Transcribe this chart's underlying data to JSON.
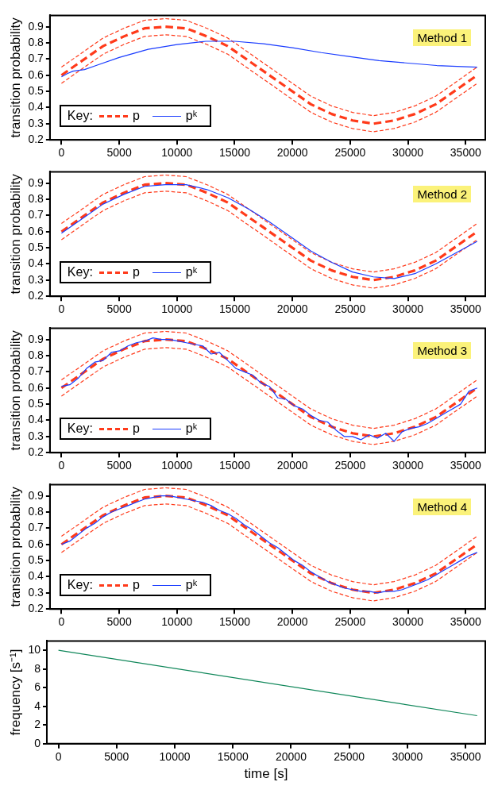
{
  "chart_data": [
    {
      "type": "line",
      "ylabel": "transition probability",
      "annotations": [
        "Method 1"
      ],
      "legend": "bottom left",
      "legend_title": "Key:",
      "grid": false,
      "xlim": [
        -1000,
        36700
      ],
      "xticks": [
        0,
        5000,
        10000,
        15000,
        20000,
        25000,
        30000,
        35000
      ],
      "ylim": [
        0.2,
        0.97
      ],
      "yticks": [
        0.2,
        0.3,
        0.4,
        0.5,
        0.6,
        0.7,
        0.8,
        0.9
      ],
      "x": [
        0,
        1800,
        3600,
        5400,
        7200,
        9000,
        10800,
        12600,
        14400,
        16200,
        18000,
        19800,
        21600,
        23400,
        25200,
        27000,
        28800,
        30600,
        32400,
        34200,
        36000
      ],
      "series": [
        {
          "name": "p",
          "color": "#ff3a1a",
          "line_style": "dashed",
          "values": [
            0.6,
            0.69,
            0.78,
            0.84,
            0.89,
            0.9,
            0.89,
            0.84,
            0.78,
            0.69,
            0.6,
            0.51,
            0.42,
            0.36,
            0.32,
            0.3,
            0.32,
            0.36,
            0.42,
            0.51,
            0.6
          ]
        },
        {
          "color": "#ff3a1a",
          "line_style": "dashed",
          "values": [
            0.65,
            0.74,
            0.83,
            0.89,
            0.94,
            0.95,
            0.94,
            0.89,
            0.83,
            0.74,
            0.65,
            0.56,
            0.47,
            0.41,
            0.37,
            0.35,
            0.37,
            0.41,
            0.47,
            0.56,
            0.65
          ]
        },
        {
          "color": "#ff3a1a",
          "line_style": "dashed",
          "values": [
            0.55,
            0.64,
            0.73,
            0.79,
            0.84,
            0.85,
            0.84,
            0.79,
            0.73,
            0.64,
            0.55,
            0.46,
            0.37,
            0.31,
            0.27,
            0.25,
            0.27,
            0.31,
            0.37,
            0.46,
            0.55
          ]
        },
        {
          "name": "pᵏ",
          "color": "#1a3cff",
          "line_style": "solid",
          "x": [
            0,
            500,
            1000,
            1500,
            2000,
            3000,
            5000,
            7500,
            10000,
            12500,
            15000,
            17500,
            20000,
            22500,
            25000,
            27500,
            30000,
            32500,
            36000
          ],
          "values": [
            0.59,
            0.61,
            0.625,
            0.63,
            0.635,
            0.66,
            0.71,
            0.76,
            0.79,
            0.81,
            0.81,
            0.795,
            0.77,
            0.74,
            0.715,
            0.69,
            0.675,
            0.66,
            0.65
          ]
        }
      ]
    },
    {
      "type": "line",
      "ylabel": "transition probability",
      "annotations": [
        "Method 2"
      ],
      "legend": "bottom left",
      "legend_title": "Key:",
      "grid": false,
      "xlim": [
        -1000,
        36700
      ],
      "xticks": [
        0,
        5000,
        10000,
        15000,
        20000,
        25000,
        30000,
        35000
      ],
      "ylim": [
        0.2,
        0.97
      ],
      "yticks": [
        0.2,
        0.3,
        0.4,
        0.5,
        0.6,
        0.7,
        0.8,
        0.9
      ],
      "x": [
        0,
        1800,
        3600,
        5400,
        7200,
        9000,
        10800,
        12600,
        14400,
        16200,
        18000,
        19800,
        21600,
        23400,
        25200,
        27000,
        28800,
        30600,
        32400,
        34200,
        36000
      ],
      "series": [
        {
          "name": "p",
          "color": "#ff3a1a",
          "line_style": "dashed",
          "values": [
            0.6,
            0.69,
            0.78,
            0.84,
            0.89,
            0.9,
            0.89,
            0.84,
            0.78,
            0.69,
            0.6,
            0.51,
            0.42,
            0.36,
            0.32,
            0.3,
            0.32,
            0.36,
            0.42,
            0.51,
            0.6
          ]
        },
        {
          "color": "#ff3a1a",
          "line_style": "dashed",
          "values": [
            0.65,
            0.74,
            0.83,
            0.89,
            0.94,
            0.95,
            0.94,
            0.89,
            0.83,
            0.74,
            0.65,
            0.56,
            0.47,
            0.41,
            0.37,
            0.35,
            0.37,
            0.41,
            0.47,
            0.56,
            0.65
          ]
        },
        {
          "color": "#ff3a1a",
          "line_style": "dashed",
          "values": [
            0.55,
            0.64,
            0.73,
            0.79,
            0.84,
            0.85,
            0.84,
            0.79,
            0.73,
            0.64,
            0.55,
            0.46,
            0.37,
            0.31,
            0.27,
            0.25,
            0.27,
            0.31,
            0.37,
            0.46,
            0.55
          ]
        },
        {
          "name": "pᵏ",
          "color": "#1a3cff",
          "line_style": "solid",
          "x": [
            0,
            1800,
            3600,
            5400,
            7200,
            9000,
            10800,
            12600,
            14400,
            16200,
            18000,
            19800,
            21600,
            23400,
            25200,
            27000,
            28800,
            30600,
            32400,
            34200,
            36000
          ],
          "values": [
            0.59,
            0.68,
            0.77,
            0.83,
            0.88,
            0.89,
            0.89,
            0.86,
            0.81,
            0.74,
            0.66,
            0.57,
            0.48,
            0.41,
            0.35,
            0.32,
            0.31,
            0.34,
            0.4,
            0.47,
            0.54
          ]
        }
      ]
    },
    {
      "type": "line",
      "ylabel": "transition probability",
      "annotations": [
        "Method 3"
      ],
      "legend": "bottom left",
      "legend_title": "Key:",
      "grid": false,
      "xlim": [
        -1000,
        36700
      ],
      "xticks": [
        0,
        5000,
        10000,
        15000,
        20000,
        25000,
        30000,
        35000
      ],
      "ylim": [
        0.2,
        0.97
      ],
      "yticks": [
        0.2,
        0.3,
        0.4,
        0.5,
        0.6,
        0.7,
        0.8,
        0.9
      ],
      "x": [
        0,
        1800,
        3600,
        5400,
        7200,
        9000,
        10800,
        12600,
        14400,
        16200,
        18000,
        19800,
        21600,
        23400,
        25200,
        27000,
        28800,
        30600,
        32400,
        34200,
        36000
      ],
      "series": [
        {
          "name": "p",
          "color": "#ff3a1a",
          "line_style": "dashed",
          "values": [
            0.6,
            0.69,
            0.78,
            0.84,
            0.89,
            0.9,
            0.89,
            0.84,
            0.78,
            0.69,
            0.6,
            0.51,
            0.42,
            0.36,
            0.32,
            0.3,
            0.32,
            0.36,
            0.42,
            0.51,
            0.6
          ]
        },
        {
          "color": "#ff3a1a",
          "line_style": "dashed",
          "values": [
            0.65,
            0.74,
            0.83,
            0.89,
            0.94,
            0.95,
            0.94,
            0.89,
            0.83,
            0.74,
            0.65,
            0.56,
            0.47,
            0.41,
            0.37,
            0.35,
            0.37,
            0.41,
            0.47,
            0.56,
            0.65
          ]
        },
        {
          "color": "#ff3a1a",
          "line_style": "dashed",
          "values": [
            0.55,
            0.64,
            0.73,
            0.79,
            0.84,
            0.85,
            0.84,
            0.79,
            0.73,
            0.64,
            0.55,
            0.46,
            0.37,
            0.31,
            0.27,
            0.25,
            0.27,
            0.31,
            0.37,
            0.46,
            0.55
          ]
        },
        {
          "name": "pᵏ",
          "color": "#1a3cff",
          "line_style": "solid",
          "x": [
            0,
            720,
            1440,
            2160,
            2880,
            3600,
            4320,
            5040,
            5760,
            6480,
            7200,
            7920,
            8640,
            9360,
            10080,
            10800,
            11520,
            12240,
            12960,
            13680,
            14400,
            15120,
            15840,
            16560,
            17280,
            18000,
            18720,
            19440,
            20160,
            20880,
            21600,
            22320,
            23040,
            23760,
            24480,
            25200,
            25920,
            26640,
            27360,
            28080,
            28800,
            29520,
            30240,
            30960,
            31680,
            32400,
            33120,
            33840,
            34560,
            35280,
            36000
          ],
          "values": [
            0.61,
            0.62,
            0.66,
            0.72,
            0.76,
            0.77,
            0.82,
            0.83,
            0.86,
            0.88,
            0.89,
            0.91,
            0.9,
            0.9,
            0.89,
            0.88,
            0.87,
            0.86,
            0.81,
            0.82,
            0.77,
            0.72,
            0.7,
            0.68,
            0.63,
            0.61,
            0.54,
            0.53,
            0.49,
            0.47,
            0.43,
            0.4,
            0.39,
            0.34,
            0.3,
            0.3,
            0.28,
            0.31,
            0.29,
            0.32,
            0.27,
            0.33,
            0.35,
            0.36,
            0.38,
            0.41,
            0.44,
            0.47,
            0.5,
            0.58,
            0.6
          ]
        }
      ]
    },
    {
      "type": "line",
      "ylabel": "transition probability",
      "annotations": [
        "Method 4"
      ],
      "legend": "bottom left",
      "legend_title": "Key:",
      "grid": false,
      "xlim": [
        -1000,
        36700
      ],
      "xticks": [
        0,
        5000,
        10000,
        15000,
        20000,
        25000,
        30000,
        35000
      ],
      "ylim": [
        0.2,
        0.97
      ],
      "yticks": [
        0.2,
        0.3,
        0.4,
        0.5,
        0.6,
        0.7,
        0.8,
        0.9
      ],
      "x": [
        0,
        1800,
        3600,
        5400,
        7200,
        9000,
        10800,
        12600,
        14400,
        16200,
        18000,
        19800,
        21600,
        23400,
        25200,
        27000,
        28800,
        30600,
        32400,
        34200,
        36000
      ],
      "series": [
        {
          "name": "p",
          "color": "#ff3a1a",
          "line_style": "dashed",
          "values": [
            0.6,
            0.69,
            0.78,
            0.84,
            0.89,
            0.9,
            0.89,
            0.84,
            0.78,
            0.69,
            0.6,
            0.51,
            0.42,
            0.36,
            0.32,
            0.3,
            0.32,
            0.36,
            0.42,
            0.51,
            0.6
          ]
        },
        {
          "color": "#ff3a1a",
          "line_style": "dashed",
          "values": [
            0.65,
            0.74,
            0.83,
            0.89,
            0.94,
            0.95,
            0.94,
            0.89,
            0.83,
            0.74,
            0.65,
            0.56,
            0.47,
            0.41,
            0.37,
            0.35,
            0.37,
            0.41,
            0.47,
            0.56,
            0.65
          ]
        },
        {
          "color": "#ff3a1a",
          "line_style": "dashed",
          "values": [
            0.55,
            0.64,
            0.73,
            0.79,
            0.84,
            0.85,
            0.84,
            0.79,
            0.73,
            0.64,
            0.55,
            0.46,
            0.37,
            0.31,
            0.27,
            0.25,
            0.27,
            0.31,
            0.37,
            0.46,
            0.55
          ]
        },
        {
          "name": "pᵏ",
          "color": "#1a3cff",
          "line_style": "solid",
          "x": [
            0,
            720,
            1440,
            2160,
            2880,
            3600,
            4320,
            5040,
            5760,
            6480,
            7200,
            7920,
            8640,
            9360,
            10080,
            10800,
            11520,
            12240,
            12960,
            13680,
            14400,
            15120,
            15840,
            16560,
            17280,
            18000,
            18720,
            19440,
            20160,
            20880,
            21600,
            22320,
            23040,
            23760,
            24480,
            25200,
            25920,
            26640,
            27360,
            28080,
            28800,
            29520,
            30240,
            30960,
            31680,
            32400,
            33120,
            33840,
            34560,
            35280,
            36000
          ],
          "values": [
            0.6,
            0.62,
            0.66,
            0.7,
            0.73,
            0.77,
            0.8,
            0.82,
            0.84,
            0.86,
            0.88,
            0.89,
            0.9,
            0.9,
            0.89,
            0.88,
            0.87,
            0.86,
            0.84,
            0.81,
            0.79,
            0.76,
            0.72,
            0.69,
            0.65,
            0.61,
            0.58,
            0.54,
            0.5,
            0.47,
            0.43,
            0.4,
            0.37,
            0.35,
            0.33,
            0.32,
            0.31,
            0.31,
            0.3,
            0.31,
            0.31,
            0.32,
            0.34,
            0.36,
            0.38,
            0.41,
            0.44,
            0.47,
            0.5,
            0.53,
            0.55
          ]
        }
      ]
    },
    {
      "type": "line",
      "ylabel": "frequency [s⁻¹]",
      "xlabel": "time [s]",
      "grid": false,
      "xlim": [
        -1000,
        36700
      ],
      "xticks": [
        0,
        5000,
        10000,
        15000,
        20000,
        25000,
        30000,
        35000
      ],
      "ylim": [
        0,
        11
      ],
      "yticks": [
        0,
        2,
        4,
        6,
        8,
        10
      ],
      "x": [
        0,
        36000
      ],
      "series": [
        {
          "color": "#10875a",
          "line_style": "solid",
          "values": [
            10,
            3
          ]
        }
      ]
    }
  ]
}
